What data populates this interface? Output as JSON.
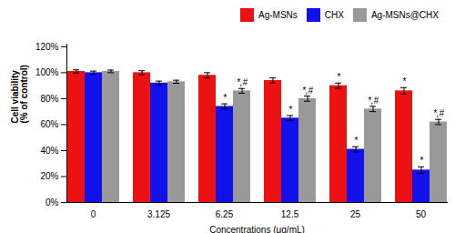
{
  "chart_data": {
    "type": "bar",
    "xlabel": "Concentrations (μg/mL)",
    "ylabel": "Cell viability\n(% of control)",
    "categories": [
      "0",
      "3.125",
      "6.25",
      "12.5",
      "25",
      "50"
    ],
    "series": [
      {
        "name": "Ag-MSNs",
        "color": "#EE1111",
        "values": [
          101,
          100,
          98,
          94,
          90,
          86
        ],
        "errors": [
          1.2,
          1.5,
          2.0,
          2.0,
          2.0,
          2.5
        ]
      },
      {
        "name": "CHX",
        "color": "#1111EE",
        "values": [
          100,
          92,
          74,
          65,
          41,
          25
        ],
        "errors": [
          1.2,
          1.5,
          2.0,
          2.0,
          2.0,
          2.5
        ]
      },
      {
        "name": "Ag-MSNs@CHX",
        "color": "#999999",
        "values": [
          101,
          93,
          86,
          80,
          72,
          62
        ],
        "errors": [
          1.0,
          1.2,
          1.8,
          2.0,
          2.0,
          2.0
        ]
      }
    ],
    "annotations": [
      {
        "series": "CHX",
        "category": "6.25",
        "text": "*"
      },
      {
        "series": "Ag-MSNs@CHX",
        "category": "6.25",
        "text": "*,#"
      },
      {
        "series": "CHX",
        "category": "12.5",
        "text": "*"
      },
      {
        "series": "Ag-MSNs@CHX",
        "category": "12.5",
        "text": "*,#"
      },
      {
        "series": "Ag-MSNs",
        "category": "25",
        "text": "*"
      },
      {
        "series": "CHX",
        "category": "25",
        "text": "*"
      },
      {
        "series": "Ag-MSNs@CHX",
        "category": "25",
        "text": "*,#"
      },
      {
        "series": "Ag-MSNs",
        "category": "50",
        "text": "*"
      },
      {
        "series": "CHX",
        "category": "50",
        "text": "*"
      },
      {
        "series": "Ag-MSNs@CHX",
        "category": "50",
        "text": "*,#"
      }
    ],
    "ylim": [
      0,
      122
    ],
    "yticks": [
      {
        "value": 0,
        "label": "0%"
      },
      {
        "value": 20,
        "label": "20%"
      },
      {
        "value": 40,
        "label": "40%"
      },
      {
        "value": 60,
        "label": "60%"
      },
      {
        "value": 80,
        "label": "80%"
      },
      {
        "value": 100,
        "label": "100%"
      },
      {
        "value": 120,
        "label": "120%"
      }
    ],
    "grid": false,
    "legend": "upper right"
  }
}
